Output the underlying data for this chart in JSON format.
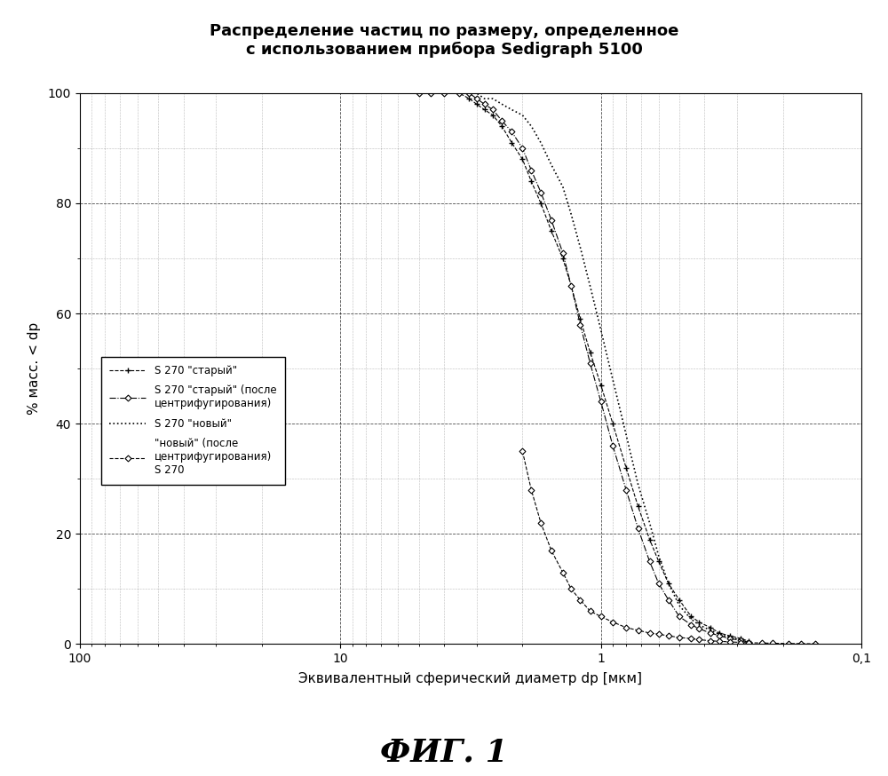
{
  "title_line1": "Распределение частиц по размеру, определенное",
  "title_line2": "с использованием прибора Sedigraph 5100",
  "xlabel": "Эквивалентный сферический диаметр dp [мкм]",
  "ylabel": "% масс. < dp",
  "fig_label": "ФИГ. 1",
  "xlim": [
    100,
    0.1
  ],
  "ylim": [
    0,
    100
  ],
  "yticks": [
    0,
    20,
    40,
    60,
    80,
    100
  ],
  "xtick_labels": [
    "100",
    "10",
    "1",
    "0,1"
  ],
  "xtick_vals": [
    100,
    10,
    1,
    0.1
  ],
  "series": {
    "s270_old": {
      "label": "S 270 \"старый\"",
      "x": [
        5.0,
        4.5,
        4.0,
        3.5,
        3.2,
        3.0,
        2.8,
        2.6,
        2.4,
        2.2,
        2.0,
        1.85,
        1.7,
        1.55,
        1.4,
        1.3,
        1.2,
        1.1,
        1.0,
        0.9,
        0.8,
        0.72,
        0.65,
        0.6,
        0.55,
        0.5,
        0.45,
        0.42,
        0.38,
        0.35,
        0.32,
        0.29,
        0.27
      ],
      "y": [
        100,
        100,
        100,
        100,
        99,
        98,
        97,
        96,
        94,
        91,
        88,
        84,
        80,
        75,
        70,
        65,
        59,
        53,
        47,
        40,
        32,
        25,
        19,
        15,
        11,
        8,
        5,
        4,
        3,
        2,
        1.5,
        1,
        0.5
      ],
      "linestyle": "--",
      "marker": "+",
      "markersize": 5
    },
    "s270_old_centrifuge": {
      "label": "S 270 \"старый\" (после\nцентрифугирования)",
      "x": [
        5.0,
        4.5,
        4.0,
        3.5,
        3.2,
        3.0,
        2.8,
        2.6,
        2.4,
        2.2,
        2.0,
        1.85,
        1.7,
        1.55,
        1.4,
        1.3,
        1.2,
        1.1,
        1.0,
        0.9,
        0.8,
        0.72,
        0.65,
        0.6,
        0.55,
        0.5,
        0.45,
        0.42,
        0.38,
        0.35,
        0.32,
        0.29,
        0.27
      ],
      "y": [
        100,
        100,
        100,
        100,
        100,
        99,
        98,
        97,
        95,
        93,
        90,
        86,
        82,
        77,
        71,
        65,
        58,
        51,
        44,
        36,
        28,
        21,
        15,
        11,
        8,
        5,
        3.5,
        2.8,
        2,
        1.5,
        1,
        0.7,
        0.3
      ],
      "linestyle": "-.",
      "marker": "D",
      "markersize": 4
    },
    "s270_new": {
      "label": "S 270 \"новый\"",
      "x": [
        5.0,
        4.5,
        4.0,
        3.5,
        3.2,
        3.0,
        2.8,
        2.6,
        2.4,
        2.2,
        2.0,
        1.85,
        1.7,
        1.55,
        1.4,
        1.3,
        1.2,
        1.1,
        1.0,
        0.9,
        0.8,
        0.72,
        0.65,
        0.6,
        0.55,
        0.5,
        0.45,
        0.42,
        0.38,
        0.35,
        0.32,
        0.29,
        0.27
      ],
      "y": [
        100,
        100,
        100,
        100,
        100,
        100,
        99,
        99,
        98,
        97,
        96,
        94,
        91,
        87,
        83,
        78,
        72,
        65,
        57,
        48,
        38,
        29,
        22,
        16,
        11,
        7,
        4.5,
        3.5,
        2.5,
        1.8,
        1.2,
        0.8,
        0.4
      ],
      "linestyle": ":",
      "marker": null,
      "markersize": 3
    },
    "s270_new_centrifuge": {
      "label": "\"новый\" (после\nцентрифугирования)\nS 270",
      "x": [
        2.0,
        1.85,
        1.7,
        1.55,
        1.4,
        1.3,
        1.2,
        1.1,
        1.0,
        0.9,
        0.8,
        0.72,
        0.65,
        0.6,
        0.55,
        0.5,
        0.45,
        0.42,
        0.38,
        0.35,
        0.32,
        0.29,
        0.27,
        0.24,
        0.22,
        0.19,
        0.17,
        0.15
      ],
      "y": [
        35,
        28,
        22,
        17,
        13,
        10,
        8,
        6,
        5,
        4,
        3,
        2.5,
        2,
        1.8,
        1.5,
        1.2,
        1.0,
        0.8,
        0.6,
        0.5,
        0.4,
        0.3,
        0.25,
        0.2,
        0.15,
        0.1,
        0.08,
        0.05
      ],
      "linestyle": "--",
      "marker": "D",
      "markersize": 4
    }
  },
  "background_color": "#ffffff",
  "title_fontsize": 13,
  "label_fontsize": 11,
  "tick_fontsize": 10
}
